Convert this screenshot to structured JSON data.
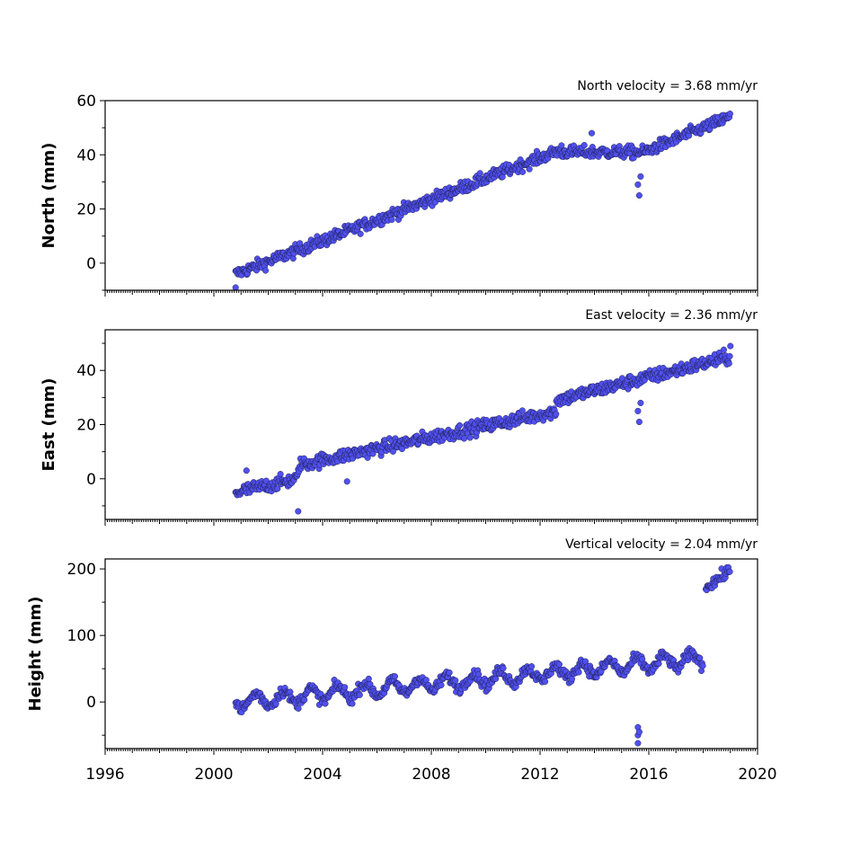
{
  "chart_data": [
    {
      "type": "scatter",
      "ylabel": "North (mm)",
      "velocity_label": "North velocity = 3.68 mm/yr",
      "ylim": [
        -10,
        60
      ],
      "yticks": [
        0,
        20,
        40,
        60
      ],
      "xlim": [
        1996,
        2020
      ],
      "color": "#5050f0",
      "series": [
        {
          "segments": [
            {
              "x0": 2000.8,
              "x1": 2012.8,
              "y0": -4,
              "y1": 42
            },
            {
              "x0": 2012.8,
              "x1": 2015.8,
              "y0": 41,
              "y1": 41
            },
            {
              "x0": 2015.8,
              "x1": 2019.0,
              "y0": 41,
              "y1": 54
            }
          ],
          "noise": 1.6,
          "outliers": [
            [
              2015.65,
              25
            ],
            [
              2015.6,
              29
            ],
            [
              2015.7,
              32
            ],
            [
              2013.9,
              48
            ],
            [
              2000.8,
              -9
            ]
          ]
        }
      ]
    },
    {
      "type": "scatter",
      "ylabel": "East (mm)",
      "velocity_label": "East velocity = 2.36 mm/yr",
      "ylim": [
        -15,
        55
      ],
      "yticks": [
        0,
        20,
        40
      ],
      "xlim": [
        1996,
        2020
      ],
      "color": "#5050f0",
      "series": [
        {
          "segments": [
            {
              "x0": 2000.8,
              "x1": 2003.1,
              "y0": -5,
              "y1": 0
            },
            {
              "x0": 2003.1,
              "x1": 2012.6,
              "y0": 5,
              "y1": 25
            },
            {
              "x0": 2012.6,
              "x1": 2019.0,
              "y0": 29,
              "y1": 45
            }
          ],
          "noise": 1.8,
          "outliers": [
            [
              2003.1,
              -12
            ],
            [
              2015.65,
              21
            ],
            [
              2015.6,
              25
            ],
            [
              2015.7,
              28
            ],
            [
              2004.9,
              -1
            ],
            [
              2001.2,
              3
            ],
            [
              2019.0,
              49
            ]
          ]
        }
      ]
    },
    {
      "type": "scatter",
      "ylabel": "Height (mm)",
      "velocity_label": "Vertical velocity = 2.04 mm/yr",
      "ylim": [
        -70,
        215
      ],
      "yticks": [
        0,
        100,
        200
      ],
      "xlim": [
        1996,
        2020
      ],
      "xticks": [
        1996,
        2000,
        2004,
        2008,
        2012,
        2016,
        2020
      ],
      "color": "#5050f0",
      "series": [
        {
          "segments": [
            {
              "x0": 2000.8,
              "x1": 2018.0,
              "y0": 0,
              "y1": 65,
              "seasonal": 10
            },
            {
              "x0": 2018.1,
              "x1": 2019.0,
              "y0": 172,
              "y1": 198
            }
          ],
          "noise": 6,
          "outliers": [
            [
              2015.6,
              -38
            ],
            [
              2015.6,
              -50
            ],
            [
              2015.6,
              -62
            ],
            [
              2015.65,
              -45
            ]
          ]
        }
      ]
    }
  ]
}
